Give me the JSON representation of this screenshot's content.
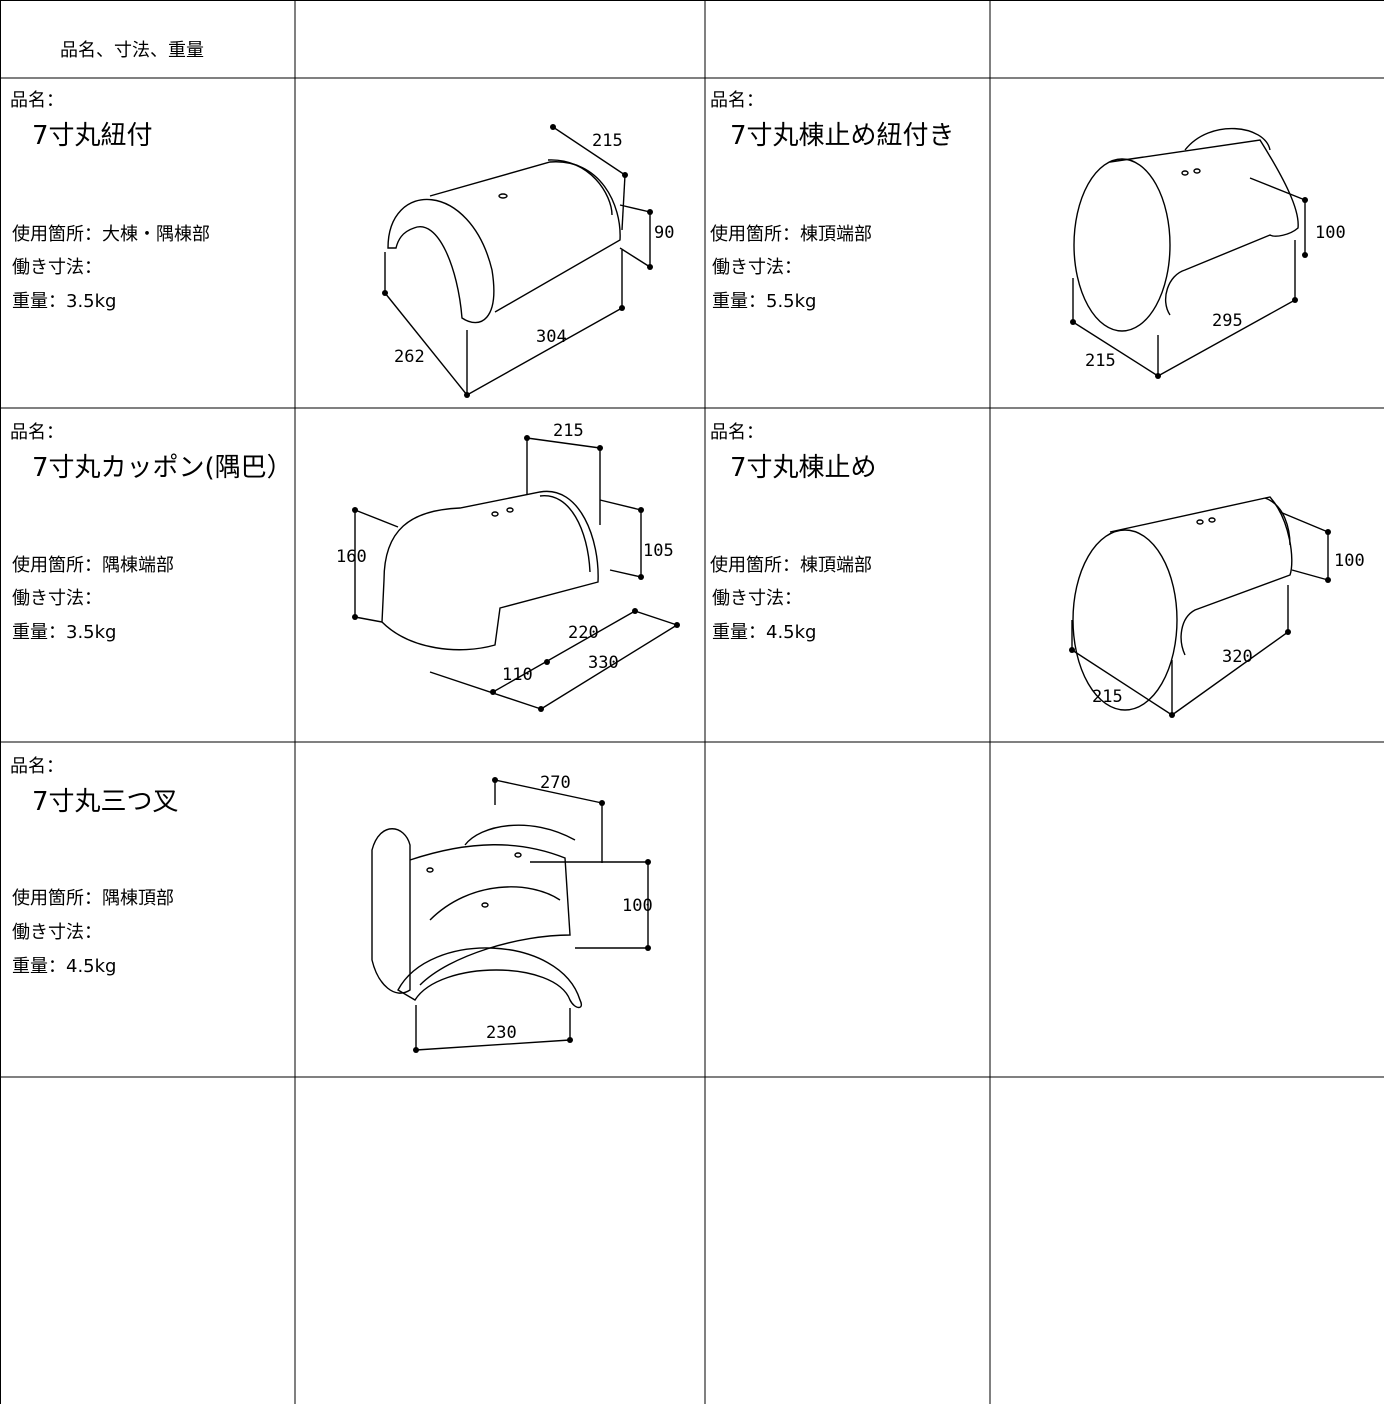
{
  "header": {
    "title": "品名、寸法、重量"
  },
  "items": [
    {
      "label": "品名：",
      "name": "7寸丸紐付",
      "usage": "使用箇所：大棟・隅棟部",
      "work_size": "働き寸法：",
      "weight": "重量：3.5kg",
      "dimensions": [
        "215",
        "90",
        "304",
        "262"
      ]
    },
    {
      "label": "品名：",
      "name": "7寸丸棟止め紐付き",
      "usage": "使用箇所：棟頂端部",
      "work_size": "働き寸法：",
      "weight": "重量：5.5kg",
      "dimensions": [
        "100",
        "295",
        "215"
      ]
    },
    {
      "label": "品名：",
      "name": "7寸丸カッポン(隅巴）",
      "usage": "使用箇所：隅棟端部",
      "work_size": "働き寸法：",
      "weight": "重量：3.5kg",
      "dimensions": [
        "215",
        "160",
        "105",
        "220",
        "330",
        "110"
      ]
    },
    {
      "label": "品名：",
      "name": "7寸丸棟止め",
      "usage": "使用箇所：棟頂端部",
      "work_size": "働き寸法：",
      "weight": "重量：4.5kg",
      "dimensions": [
        "100",
        "320",
        "215"
      ]
    },
    {
      "label": "品名：",
      "name": "7寸丸三つ叉",
      "usage": "使用箇所：隅棟頂部",
      "work_size": "働き寸法：",
      "weight": "重量：4.5kg",
      "dimensions": [
        "270",
        "100",
        "230"
      ]
    }
  ]
}
